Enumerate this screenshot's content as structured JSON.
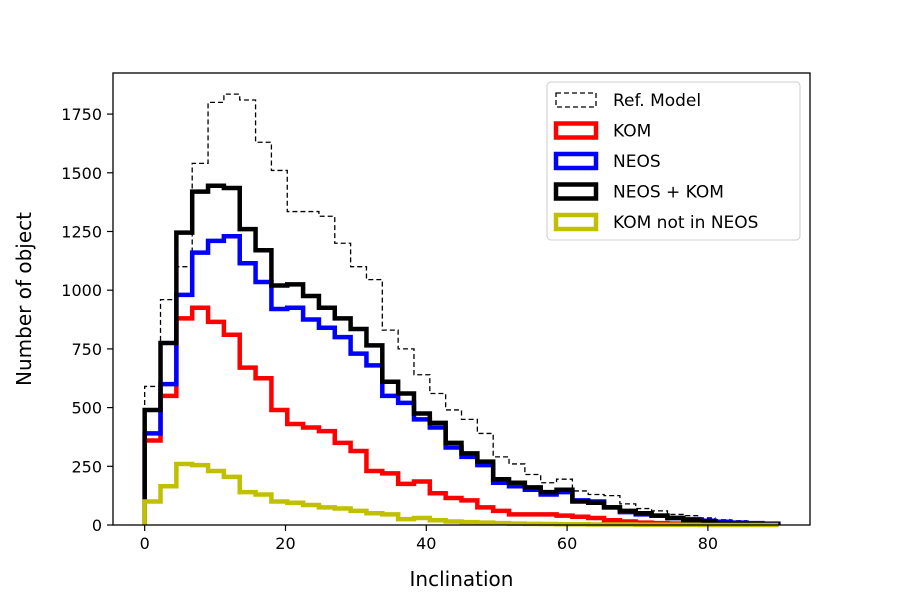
{
  "chart_data": {
    "type": "histogram-step",
    "xlabel": "Inclination",
    "ylabel": "Number of object",
    "xlim": [
      -4.5,
      94.5
    ],
    "ylim": [
      0,
      1925
    ],
    "xticks": [
      0,
      20,
      40,
      60,
      80
    ],
    "yticks": [
      0,
      250,
      500,
      750,
      1000,
      1250,
      1500,
      1750
    ],
    "grid": false,
    "legend_position": "top-right",
    "bin_width": 2.25,
    "bin_start": 0,
    "series": [
      {
        "name": "Ref. Model",
        "color": "#000000",
        "style": "dashed",
        "values": [
          590,
          960,
          1100,
          1540,
          1800,
          1835,
          1810,
          1630,
          1510,
          1335,
          1335,
          1315,
          1200,
          1100,
          1045,
          830,
          750,
          640,
          560,
          490,
          450,
          390,
          290,
          260,
          215,
          180,
          195,
          145,
          130,
          125,
          90,
          70,
          60,
          45,
          40,
          30,
          22,
          18,
          14,
          10
        ]
      },
      {
        "name": "KOM",
        "color": "#ff0000",
        "style": "solid",
        "values": [
          360,
          550,
          880,
          925,
          865,
          810,
          670,
          625,
          490,
          430,
          415,
          400,
          350,
          315,
          230,
          220,
          175,
          185,
          135,
          115,
          105,
          75,
          60,
          45,
          45,
          45,
          40,
          35,
          30,
          20,
          15,
          10,
          8,
          6,
          5,
          4,
          3,
          3,
          2,
          2
        ]
      },
      {
        "name": "NEOS",
        "color": "#0000ff",
        "style": "solid",
        "values": [
          390,
          600,
          980,
          1160,
          1210,
          1230,
          1115,
          1035,
          920,
          925,
          875,
          840,
          800,
          730,
          680,
          550,
          520,
          450,
          415,
          330,
          290,
          255,
          180,
          165,
          150,
          130,
          140,
          105,
          100,
          75,
          55,
          45,
          40,
          30,
          25,
          18,
          14,
          10,
          8,
          6
        ]
      },
      {
        "name": "NEOS + KOM",
        "color": "#000000",
        "style": "solid",
        "values": [
          490,
          775,
          1245,
          1420,
          1445,
          1435,
          1260,
          1170,
          1020,
          1025,
          975,
          925,
          880,
          835,
          765,
          610,
          560,
          475,
          435,
          350,
          305,
          270,
          195,
          180,
          160,
          140,
          150,
          100,
          95,
          75,
          60,
          50,
          40,
          30,
          20,
          15,
          8,
          5,
          3,
          2
        ]
      },
      {
        "name": "KOM not in NEOS",
        "color": "#c0c000",
        "style": "solid",
        "values": [
          100,
          165,
          260,
          255,
          230,
          205,
          140,
          130,
          100,
          95,
          85,
          75,
          70,
          60,
          50,
          45,
          25,
          30,
          20,
          15,
          12,
          10,
          8,
          6,
          5,
          4,
          3,
          3,
          2,
          2,
          2,
          1,
          1,
          1,
          1,
          0,
          0,
          0,
          0,
          0
        ]
      }
    ]
  }
}
